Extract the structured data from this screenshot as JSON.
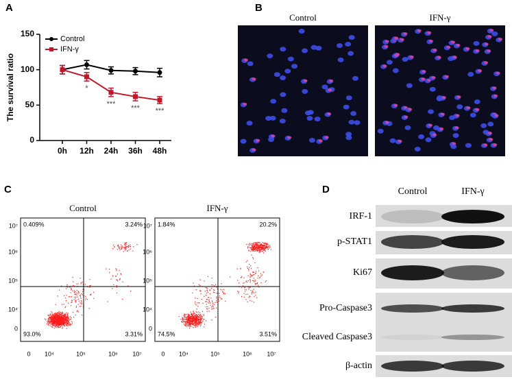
{
  "letters": [
    "A",
    "B",
    "C",
    "D"
  ],
  "chart_data": {
    "type": "line",
    "y_label": "The survival ratio",
    "categories": [
      "0h",
      "12h",
      "24h",
      "36h",
      "48h"
    ],
    "series": [
      {
        "name": "Control",
        "color": "#000000",
        "values": [
          100,
          107,
          99,
          98,
          96
        ],
        "errors": [
          6,
          6,
          5,
          5,
          6
        ]
      },
      {
        "name": "IFN-γ",
        "color": "#c0182a",
        "values": [
          100,
          90,
          68,
          62,
          57
        ],
        "errors": [
          6,
          6,
          6,
          6,
          5
        ]
      }
    ],
    "significance": [
      null,
      "*",
      "***",
      "***",
      "***"
    ],
    "ylim": [
      0,
      150
    ],
    "yticks": [
      0,
      50,
      100,
      150
    ],
    "legend": "upper left"
  },
  "panel_b": {
    "conditions": [
      "Control",
      "IFN-γ"
    ]
  },
  "panel_c": {
    "yticks": [
      "10⁷",
      "10⁶",
      "10⁵",
      "10⁴",
      "0"
    ],
    "xticks": [
      "0",
      "10⁴",
      "10⁵",
      "10⁶",
      "10⁷"
    ],
    "plots": [
      {
        "title": "Control",
        "quadrants": [
          "0.409%",
          "3.24%",
          "93.0%",
          "3.31%"
        ]
      },
      {
        "title": "IFN-γ",
        "quadrants": [
          "1.84%",
          "20.2%",
          "74.5%",
          "3.51%"
        ]
      }
    ]
  },
  "panel_d": {
    "conditions": [
      "Control",
      "IFN-γ"
    ],
    "proteins": [
      "IRF-1",
      "p-STAT1",
      "Ki67",
      "Pro-Caspase3",
      "Cleaved Caspase3",
      "β-actin"
    ]
  }
}
